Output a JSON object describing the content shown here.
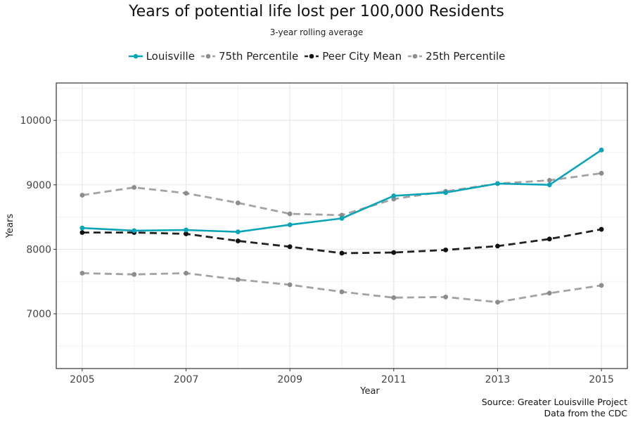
{
  "chart_data": {
    "type": "line",
    "title": "Years of potential life lost per 100,000 Residents",
    "subtitle": "3-year rolling average",
    "xlabel": "Year",
    "ylabel": "Years",
    "x": [
      2005,
      2006,
      2007,
      2008,
      2009,
      2010,
      2011,
      2012,
      2013,
      2014,
      2015
    ],
    "xlim": [
      2004.5,
      2015.5
    ],
    "ylim": [
      6150,
      10580
    ],
    "x_ticks": [
      2005,
      2007,
      2009,
      2011,
      2013,
      2015
    ],
    "y_ticks": [
      7000,
      8000,
      9000,
      10000
    ],
    "x_tick_labels": [
      "2005",
      "2007",
      "2009",
      "2011",
      "2013",
      "2015"
    ],
    "y_tick_labels": [
      "7000",
      "8000",
      "9000",
      "10000"
    ],
    "grid": true,
    "legend_position": "top",
    "series": [
      {
        "name": "Louisville",
        "color": "#0aa4b8",
        "dash": "solid",
        "values": [
          8330,
          8290,
          8300,
          8270,
          8380,
          8480,
          8830,
          8880,
          9020,
          9000,
          9540
        ]
      },
      {
        "name": "75th Percentile",
        "color": "#a3a3a3",
        "dash": "dashed",
        "values": [
          8840,
          8960,
          8870,
          8720,
          8550,
          8530,
          8780,
          8900,
          9020,
          9070,
          9180
        ]
      },
      {
        "name": "Peer City Mean",
        "color": "#222222",
        "dash": "dashed",
        "values": [
          8260,
          8260,
          8240,
          8130,
          8040,
          7940,
          7950,
          7990,
          8050,
          8160,
          8310
        ]
      },
      {
        "name": "25th Percentile",
        "color": "#a3a3a3",
        "dash": "dashed",
        "values": [
          7630,
          7610,
          7630,
          7530,
          7450,
          7340,
          7250,
          7260,
          7180,
          7320,
          7440
        ]
      }
    ],
    "source_lines": [
      "Source: Greater Louisville Project",
      "Data from the CDC"
    ]
  }
}
